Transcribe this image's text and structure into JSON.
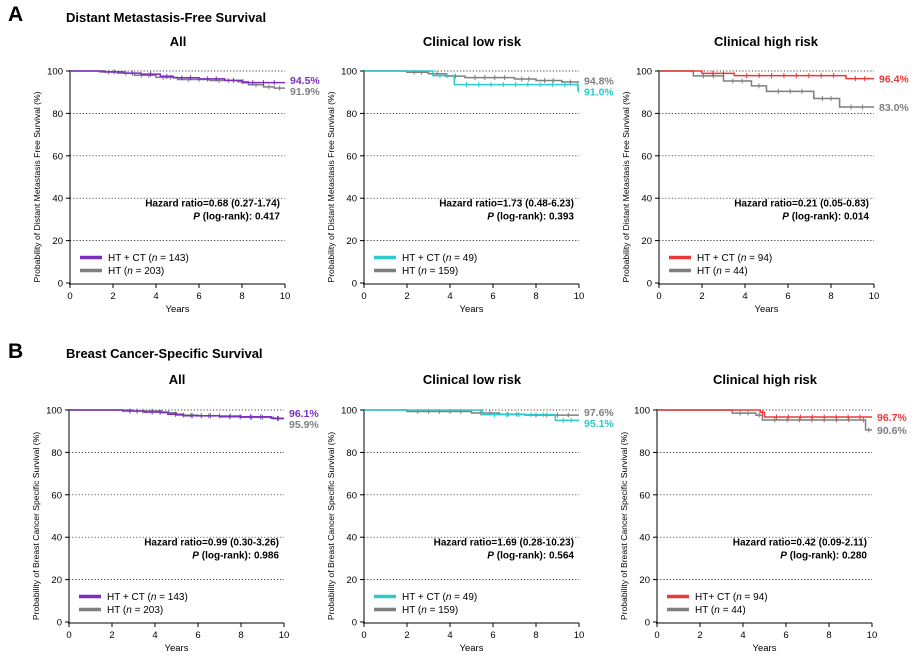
{
  "sections": [
    {
      "letter": "A",
      "title": "Distant Metastasis-Free Survival"
    },
    {
      "letter": "B",
      "title": "Breast Cancer-Specific Survival"
    }
  ],
  "colors": {
    "all": "#7b2fbe",
    "low": "#2ec9c9",
    "high": "#e8383a",
    "ht": "#7f7f7f"
  },
  "chart_data": [
    {
      "type": "line",
      "title": "All",
      "ylabel": "Probability of Distant Metastasis Free Survival (%)",
      "xlabel": "Years",
      "xlim": [
        0,
        10
      ],
      "ylim": [
        0,
        100
      ],
      "xticks": [
        "0",
        "2",
        "4",
        "6",
        "8",
        "10"
      ],
      "yticks": [
        "0",
        "20",
        "40",
        "60",
        "80",
        "100"
      ],
      "grid": "horizontal dotted",
      "hazard_ratio": "Hazard ratio=0.68 (0.27-1.74)",
      "p_value": "0.417",
      "series": [
        {
          "name": "HT + CT",
          "n": "143",
          "color_key": "all",
          "end_label": "94.5%",
          "steps": [
            [
              0,
              100
            ],
            [
              1.6,
              99.6
            ],
            [
              2.5,
              99
            ],
            [
              3.3,
              98.5
            ],
            [
              4.2,
              97.5
            ],
            [
              4.8,
              96.8
            ],
            [
              6,
              96.3
            ],
            [
              7.2,
              95.6
            ],
            [
              8,
              94.5
            ],
            [
              10,
              94.5
            ]
          ]
        },
        {
          "name": "HT",
          "n": "203",
          "color_key": "ht",
          "end_label": "91.9%",
          "steps": [
            [
              0,
              100
            ],
            [
              1.4,
              99.5
            ],
            [
              2.2,
              99
            ],
            [
              3,
              98
            ],
            [
              4,
              97
            ],
            [
              5,
              96
            ],
            [
              6.5,
              95.5
            ],
            [
              7.8,
              95
            ],
            [
              8.3,
              93.5
            ],
            [
              9,
              92.5
            ],
            [
              9.5,
              91.9
            ],
            [
              10,
              91.9
            ]
          ]
        }
      ]
    },
    {
      "type": "line",
      "title": "Clinical low risk",
      "ylabel": "Probability of Distant Metastasis Free Survival (%)",
      "xlabel": "Years",
      "xlim": [
        0,
        10
      ],
      "ylim": [
        0,
        100
      ],
      "xticks": [
        "0",
        "2",
        "4",
        "6",
        "8",
        "10"
      ],
      "yticks": [
        "0",
        "20",
        "40",
        "60",
        "80",
        "100"
      ],
      "grid": "horizontal dotted",
      "hazard_ratio": "Hazard ratio=1.73 (0.48-6.23)",
      "p_value": "0.393",
      "series": [
        {
          "name": "HT + CT",
          "n": "49",
          "color_key": "low",
          "end_label": "91.0%",
          "steps": [
            [
              0,
              100
            ],
            [
              3.2,
              97.8
            ],
            [
              4.2,
              93.6
            ],
            [
              9.9,
              93.6
            ],
            [
              9.95,
              91
            ],
            [
              10,
              91
            ]
          ]
        },
        {
          "name": "HT",
          "n": "159",
          "color_key": "ht",
          "end_label": "94.8%",
          "steps": [
            [
              0,
              100
            ],
            [
              2,
              99.4
            ],
            [
              3,
              98.7
            ],
            [
              3.8,
              97.6
            ],
            [
              4.7,
              96.9
            ],
            [
              7,
              96.2
            ],
            [
              8,
              95.5
            ],
            [
              9.2,
              94.8
            ],
            [
              10,
              94.8
            ]
          ]
        }
      ]
    },
    {
      "type": "line",
      "title": "Clinical high risk",
      "ylabel": "Probability of Distant Metastasis Free Survival (%)",
      "xlabel": "Years",
      "xlim": [
        0,
        10
      ],
      "ylim": [
        0,
        100
      ],
      "xticks": [
        "0",
        "2",
        "4",
        "6",
        "8",
        "10"
      ],
      "yticks": [
        "0",
        "20",
        "40",
        "60",
        "80",
        "100"
      ],
      "grid": "horizontal dotted",
      "hazard_ratio": "Hazard ratio=0.21 (0.05-0.83)",
      "p_value": "0.014",
      "series": [
        {
          "name": "HT + CT",
          "n": "94",
          "color_key": "high",
          "end_label": "96.4%",
          "steps": [
            [
              0,
              100
            ],
            [
              2,
              98.9
            ],
            [
              3.5,
              97.8
            ],
            [
              8.7,
              96.4
            ],
            [
              10,
              96.4
            ]
          ]
        },
        {
          "name": "HT",
          "n": "44",
          "color_key": "ht",
          "end_label": "83.0%",
          "steps": [
            [
              0,
              100
            ],
            [
              1.6,
              97.7
            ],
            [
              3,
              95.3
            ],
            [
              4.3,
              93
            ],
            [
              5,
              90.4
            ],
            [
              7.2,
              87
            ],
            [
              8.4,
              83
            ],
            [
              10,
              83
            ]
          ]
        }
      ]
    },
    {
      "type": "line",
      "title": "All",
      "ylabel": "Probability of Breast Cancer Specific Survival (%)",
      "xlabel": "Years",
      "xlim": [
        0,
        10
      ],
      "ylim": [
        0,
        100
      ],
      "xticks": [
        "0",
        "2",
        "4",
        "6",
        "8",
        "10"
      ],
      "yticks": [
        "0",
        "20",
        "40",
        "60",
        "80",
        "100"
      ],
      "grid": "horizontal dotted",
      "hazard_ratio": "Hazard ratio=0.99 (0.30-3.26)",
      "p_value": "0.986",
      "series": [
        {
          "name": "HT + CT",
          "n": "143",
          "color_key": "all",
          "end_label": "96.1%",
          "steps": [
            [
              0,
              100
            ],
            [
              2.5,
              99.5
            ],
            [
              3.5,
              99
            ],
            [
              4.6,
              98
            ],
            [
              5.3,
              97.3
            ],
            [
              7,
              96.8
            ],
            [
              9.4,
              96.1
            ],
            [
              10,
              96.1
            ]
          ]
        },
        {
          "name": "HT",
          "n": "203",
          "color_key": "ht",
          "end_label": "95.9%",
          "steps": [
            [
              0,
              100
            ],
            [
              3,
              99.5
            ],
            [
              4.3,
              98.7
            ],
            [
              5,
              97.6
            ],
            [
              6,
              97.2
            ],
            [
              8,
              96.5
            ],
            [
              9.5,
              95.9
            ],
            [
              10,
              95.9
            ]
          ]
        }
      ]
    },
    {
      "type": "line",
      "title": "Clinical low risk",
      "ylabel": "Probability of Breast Cancer Specific Survival (%)",
      "xlabel": "Years",
      "xlim": [
        0,
        10
      ],
      "ylim": [
        0,
        100
      ],
      "xticks": [
        "0",
        "2",
        "4",
        "6",
        "8",
        "10"
      ],
      "yticks": [
        "0",
        "20",
        "40",
        "60",
        "80",
        "100"
      ],
      "grid": "horizontal dotted",
      "hazard_ratio": "Hazard ratio=1.69 (0.28-10.23)",
      "p_value": "0.564",
      "series": [
        {
          "name": "HT + CT",
          "n": "49",
          "color_key": "low",
          "end_label": "95.1%",
          "steps": [
            [
              0,
              100
            ],
            [
              5.5,
              97.8
            ],
            [
              8.9,
              95.1
            ],
            [
              10,
              95.1
            ]
          ]
        },
        {
          "name": "HT",
          "n": "159",
          "color_key": "ht",
          "end_label": "97.6%",
          "steps": [
            [
              0,
              100
            ],
            [
              2,
              99.3
            ],
            [
              5,
              98.6
            ],
            [
              6.3,
              98
            ],
            [
              7.5,
              97.6
            ],
            [
              10,
              97.6
            ]
          ]
        }
      ]
    },
    {
      "type": "line",
      "title": "Clinical high risk",
      "ylabel": "Probability of Breast Cancer Specific Survival (%)",
      "xlabel": "Years",
      "xlim": [
        0,
        10
      ],
      "ylim": [
        0,
        100
      ],
      "xticks": [
        "0",
        "2",
        "4",
        "6",
        "8",
        "10"
      ],
      "yticks": [
        "0",
        "20",
        "40",
        "60",
        "80",
        "100"
      ],
      "grid": "horizontal dotted",
      "hazard_ratio": "Hazard ratio=0.42 (0.09-2.11)",
      "p_value": "0.280",
      "series": [
        {
          "name": "HT+ CT",
          "n": "94",
          "color_key": "high",
          "end_label": "96.7%",
          "steps": [
            [
              0,
              100
            ],
            [
              4.8,
              98.9
            ],
            [
              5,
              96.7
            ],
            [
              10,
              96.7
            ]
          ]
        },
        {
          "name": "HT",
          "n": "44",
          "color_key": "ht",
          "end_label": "90.6%",
          "steps": [
            [
              0,
              100
            ],
            [
              3.5,
              98.5
            ],
            [
              4.6,
              97.6
            ],
            [
              4.9,
              95.3
            ],
            [
              9.5,
              95.3
            ],
            [
              9.7,
              90.6
            ],
            [
              10,
              90.6
            ]
          ]
        }
      ]
    }
  ]
}
